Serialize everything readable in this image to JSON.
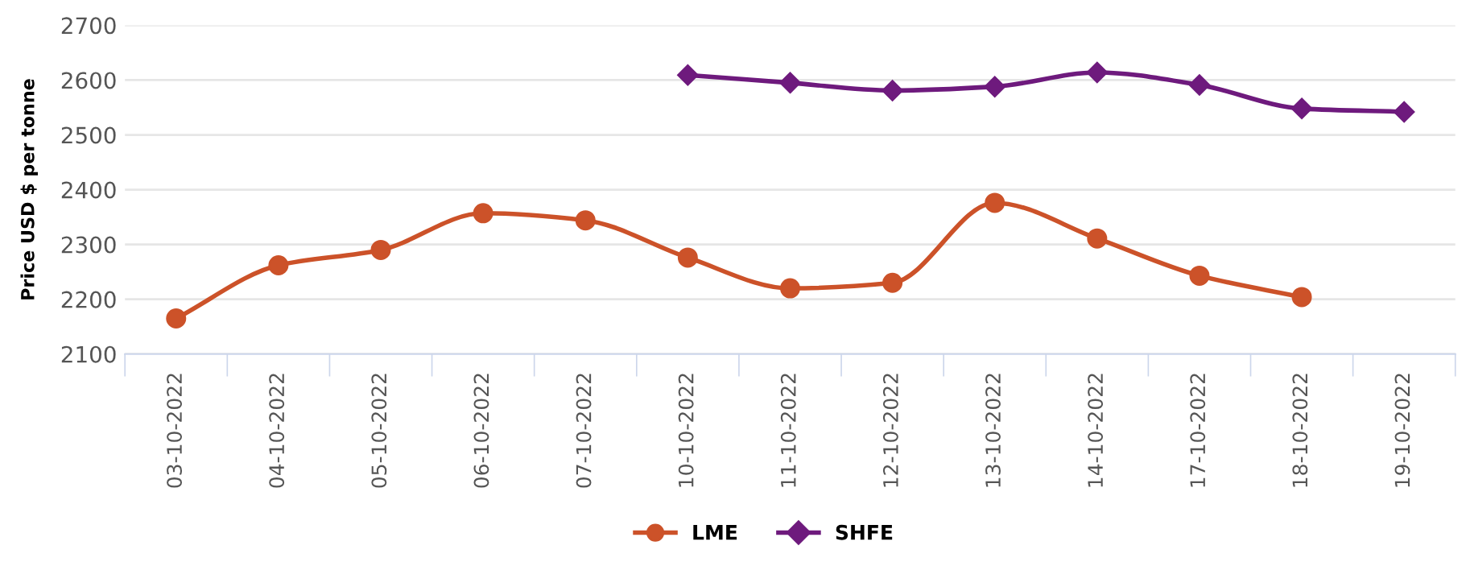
{
  "chart_data": {
    "type": "line",
    "ylabel": "Price USD $ per tonne",
    "categories": [
      "03-10-2022",
      "04-10-2022",
      "05-10-2022",
      "06-10-2022",
      "07-10-2022",
      "10-10-2022",
      "11-10-2022",
      "12-10-2022",
      "13-10-2022",
      "14-10-2022",
      "17-10-2022",
      "18-10-2022",
      "19-10-2022"
    ],
    "series": [
      {
        "name": "LME",
        "color": "#cc5229",
        "marker": "circle",
        "values": [
          2165,
          2262,
          2290,
          2357,
          2344,
          2276,
          2220,
          2230,
          2376,
          2311,
          2243,
          2204,
          null
        ]
      },
      {
        "name": "SHFE",
        "color": "#6e1a7d",
        "marker": "diamond",
        "values": [
          null,
          null,
          null,
          null,
          null,
          2609,
          2595,
          2581,
          2588,
          2614,
          2591,
          2548,
          2542
        ]
      }
    ],
    "ylim": [
      2100,
      2700
    ],
    "yticks": [
      2100,
      2200,
      2300,
      2400,
      2500,
      2600,
      2700
    ],
    "grid": "y",
    "legend": "bottom"
  }
}
